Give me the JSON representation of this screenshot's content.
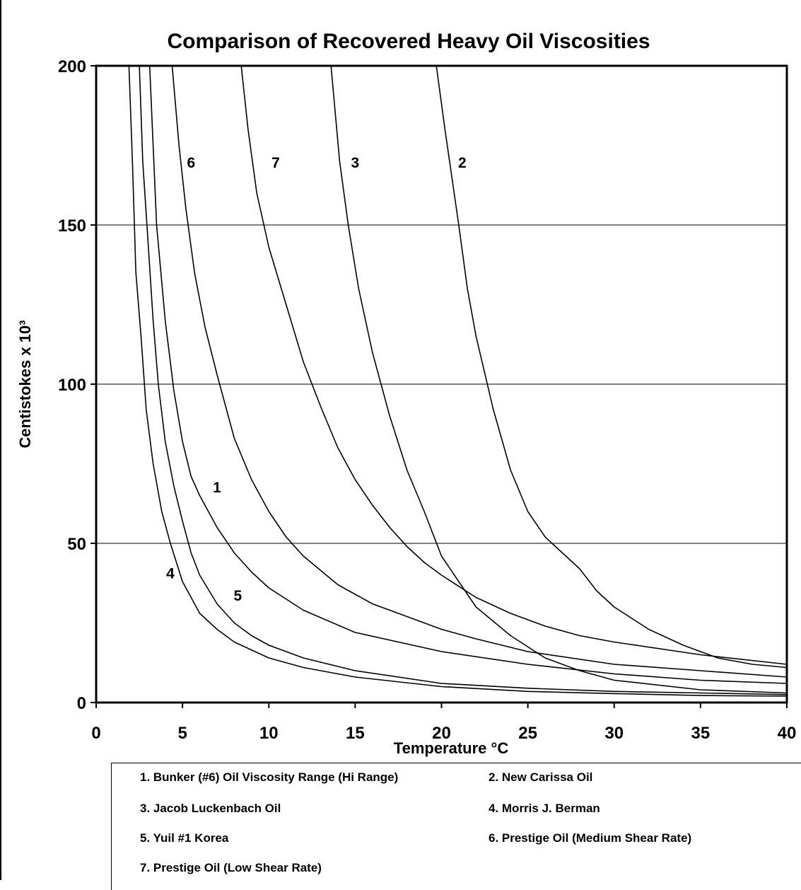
{
  "chart_data": {
    "type": "line",
    "title": "Comparison of Recovered Heavy Oil Viscosities",
    "xlabel": "Temperature  °C",
    "ylabel": "Centistokes x 10³",
    "xlim": [
      0,
      40
    ],
    "ylim": [
      0,
      200
    ],
    "x_ticks": [
      "0",
      "5",
      "10",
      "15",
      "20",
      "25",
      "30",
      "35",
      "40"
    ],
    "y_ticks": [
      "0",
      "50",
      "100",
      "150",
      "200"
    ],
    "grid": "horizontal",
    "legend_placement": "bottom",
    "series": [
      {
        "name": "1. Bunker (#6) Oil Viscosity Range (Hi Range)",
        "marker": "1",
        "points": [
          [
            3.1,
            200
          ],
          [
            3.5,
            150
          ],
          [
            4,
            120
          ],
          [
            4.5,
            98
          ],
          [
            5,
            82
          ],
          [
            5.5,
            71
          ],
          [
            6,
            65
          ],
          [
            7,
            55
          ],
          [
            8,
            47
          ],
          [
            9,
            41
          ],
          [
            10,
            36
          ],
          [
            12,
            29
          ],
          [
            15,
            22
          ],
          [
            20,
            16
          ],
          [
            25,
            12
          ],
          [
            30,
            9
          ],
          [
            35,
            7
          ],
          [
            40,
            6
          ]
        ]
      },
      {
        "name": "2. New Carissa Oil",
        "marker": "2",
        "points": [
          [
            19.7,
            200
          ],
          [
            20.2,
            180
          ],
          [
            21,
            150
          ],
          [
            21.5,
            130
          ],
          [
            22,
            115
          ],
          [
            23,
            92
          ],
          [
            24,
            73
          ],
          [
            25,
            60
          ],
          [
            26,
            52
          ],
          [
            27,
            47
          ],
          [
            28,
            42
          ],
          [
            29,
            35
          ],
          [
            30,
            30
          ],
          [
            32,
            23
          ],
          [
            34,
            18
          ],
          [
            36,
            14
          ],
          [
            38,
            12
          ],
          [
            40,
            11
          ]
        ]
      },
      {
        "name": "3. Jacob Luckenbach Oil",
        "marker": "3",
        "points": [
          [
            13.6,
            200
          ],
          [
            14.1,
            170
          ],
          [
            14.6,
            150
          ],
          [
            15.2,
            130
          ],
          [
            16,
            110
          ],
          [
            17,
            90
          ],
          [
            18,
            73
          ],
          [
            19,
            60
          ],
          [
            20,
            46
          ],
          [
            21,
            38
          ],
          [
            22,
            30
          ],
          [
            24,
            21
          ],
          [
            26,
            14
          ],
          [
            28,
            10
          ],
          [
            30,
            7
          ],
          [
            35,
            4
          ],
          [
            40,
            3
          ]
        ]
      },
      {
        "name": "4. Morris J. Berman",
        "marker": "4",
        "points": [
          [
            1.9,
            200
          ],
          [
            2.1,
            170
          ],
          [
            2.3,
            135
          ],
          [
            2.6,
            115
          ],
          [
            2.9,
            92
          ],
          [
            3.3,
            75
          ],
          [
            3.8,
            60
          ],
          [
            4.3,
            50
          ],
          [
            5,
            38
          ],
          [
            6,
            28
          ],
          [
            7,
            23
          ],
          [
            8,
            19
          ],
          [
            10,
            14
          ],
          [
            12,
            11
          ],
          [
            15,
            8
          ],
          [
            20,
            5
          ],
          [
            25,
            3.5
          ],
          [
            30,
            2.8
          ],
          [
            35,
            2.2
          ],
          [
            40,
            2
          ]
        ]
      },
      {
        "name": "5. Yuil #1 Korea",
        "marker": "5",
        "points": [
          [
            2.5,
            200
          ],
          [
            2.7,
            170
          ],
          [
            3,
            145
          ],
          [
            3.3,
            120
          ],
          [
            3.6,
            100
          ],
          [
            4,
            82
          ],
          [
            4.5,
            68
          ],
          [
            5,
            57
          ],
          [
            5.5,
            47
          ],
          [
            6,
            40
          ],
          [
            7,
            31
          ],
          [
            8,
            25
          ],
          [
            9,
            21
          ],
          [
            10,
            18
          ],
          [
            12,
            14
          ],
          [
            15,
            10
          ],
          [
            20,
            6
          ],
          [
            25,
            4.5
          ],
          [
            30,
            3.5
          ],
          [
            35,
            3
          ],
          [
            40,
            2.5
          ]
        ]
      },
      {
        "name": "6. Prestige Oil (Medium Shear Rate)",
        "marker": "6",
        "points": [
          [
            4.4,
            200
          ],
          [
            4.8,
            175
          ],
          [
            5.2,
            155
          ],
          [
            5.7,
            135
          ],
          [
            6.3,
            118
          ],
          [
            7,
            103
          ],
          [
            8,
            83
          ],
          [
            9,
            70
          ],
          [
            10,
            60
          ],
          [
            11,
            52
          ],
          [
            12,
            46
          ],
          [
            14,
            37
          ],
          [
            16,
            31
          ],
          [
            18,
            27
          ],
          [
            20,
            23
          ],
          [
            22,
            20
          ],
          [
            25,
            16
          ],
          [
            30,
            12
          ],
          [
            35,
            10
          ],
          [
            40,
            8
          ]
        ]
      },
      {
        "name": "7. Prestige Oil (Low Shear Rate)",
        "marker": "7",
        "points": [
          [
            8.4,
            200
          ],
          [
            8.8,
            180
          ],
          [
            9.3,
            160
          ],
          [
            10,
            143
          ],
          [
            11,
            125
          ],
          [
            12,
            107
          ],
          [
            13,
            93
          ],
          [
            14,
            80
          ],
          [
            15,
            70
          ],
          [
            16,
            62
          ],
          [
            17,
            55
          ],
          [
            18,
            49
          ],
          [
            19,
            44
          ],
          [
            20,
            40
          ],
          [
            22,
            33
          ],
          [
            24,
            28
          ],
          [
            26,
            24
          ],
          [
            28,
            21
          ],
          [
            30,
            19
          ],
          [
            35,
            15
          ],
          [
            40,
            12
          ]
        ]
      }
    ],
    "legend_entries": [
      "1. Bunker (#6) Oil Viscosity Range (Hi Range)",
      "2. New Carissa Oil",
      "3. Jacob Luckenbach Oil",
      "4. Morris J. Berman",
      "5. Yuil #1 Korea",
      "6. Prestige Oil (Medium Shear Rate)",
      "7. Prestige Oil (Low Shear Rate)"
    ],
    "curve_markers": [
      "6",
      "7",
      "3",
      "2",
      "1",
      "4",
      "5"
    ]
  },
  "colors": {
    "background": "#ffffff",
    "line": "#000000",
    "grid": "#000000"
  }
}
